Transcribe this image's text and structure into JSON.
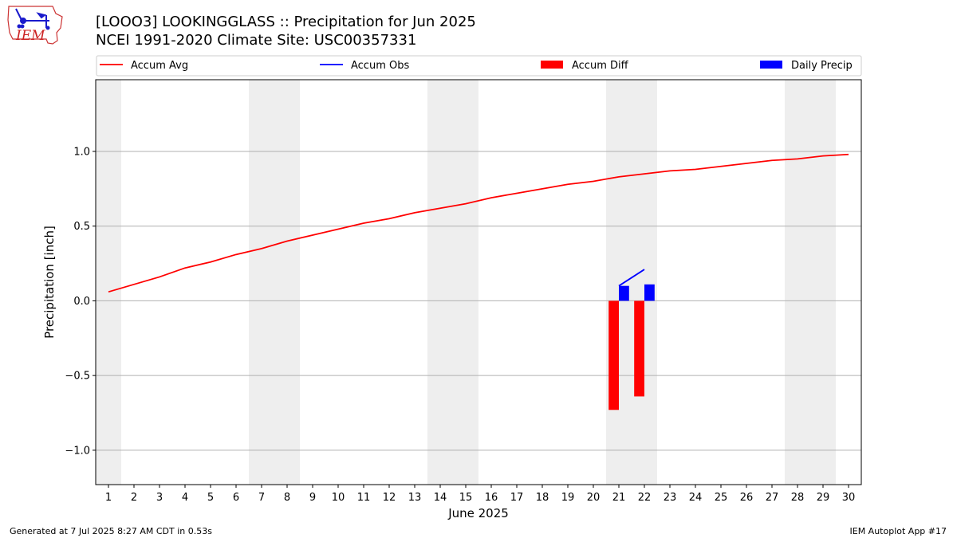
{
  "header": {
    "title_line1": "[LOOO3] LOOKINGGLASS :: Precipitation for Jun 2025",
    "title_line2": "NCEI 1991-2020 Climate Site: USC00357331"
  },
  "logo": {
    "text": "IEM"
  },
  "footer": {
    "generated": "Generated at 7 Jul 2025 8:27 AM CDT in 0.53s",
    "app": "IEM Autoplot App #17"
  },
  "chart_data": {
    "type": "line",
    "xlabel": "June 2025",
    "ylabel": "Precipitation [inch]",
    "days": [
      1,
      2,
      3,
      4,
      5,
      6,
      7,
      8,
      9,
      10,
      11,
      12,
      13,
      14,
      15,
      16,
      17,
      18,
      19,
      20,
      21,
      22,
      23,
      24,
      25,
      26,
      27,
      28,
      29,
      30
    ],
    "xlim": [
      0.5,
      30.5
    ],
    "ylim": [
      -1.23,
      1.48
    ],
    "yticks": [
      -1.0,
      -0.5,
      0.0,
      0.5,
      1.0
    ],
    "ytick_labels": [
      "−1.0",
      "−0.5",
      "0.0",
      "0.5",
      "1.0"
    ],
    "grid": "horizontal",
    "legend_position": "top",
    "weekend_shading": [
      [
        0.5,
        1.5
      ],
      [
        6.5,
        8.5
      ],
      [
        13.5,
        15.5
      ],
      [
        20.5,
        22.5
      ],
      [
        27.5,
        29.5
      ]
    ],
    "series": [
      {
        "name": "Accum Avg",
        "kind": "line",
        "color": "#ff0000",
        "x": [
          1,
          2,
          3,
          4,
          5,
          6,
          7,
          8,
          9,
          10,
          11,
          12,
          13,
          14,
          15,
          16,
          17,
          18,
          19,
          20,
          21,
          22,
          23,
          24,
          25,
          26,
          27,
          28,
          29,
          30
        ],
        "values": [
          0.06,
          0.11,
          0.16,
          0.22,
          0.26,
          0.31,
          0.35,
          0.4,
          0.44,
          0.48,
          0.52,
          0.55,
          0.59,
          0.62,
          0.65,
          0.69,
          0.72,
          0.75,
          0.78,
          0.8,
          0.83,
          0.85,
          0.87,
          0.88,
          0.9,
          0.92,
          0.94,
          0.95,
          0.97,
          0.98
        ]
      },
      {
        "name": "Accum Obs",
        "kind": "line",
        "color": "#0000ff",
        "x": [
          21,
          22
        ],
        "values": [
          0.1,
          0.21
        ]
      },
      {
        "name": "Accum Diff",
        "kind": "bar",
        "color": "#ff0000",
        "x": [
          21,
          22
        ],
        "values": [
          -0.73,
          -0.64
        ]
      },
      {
        "name": "Daily Precip",
        "kind": "bar",
        "color": "#0000ff",
        "x": [
          21,
          22
        ],
        "values": [
          0.1,
          0.11
        ]
      }
    ]
  }
}
